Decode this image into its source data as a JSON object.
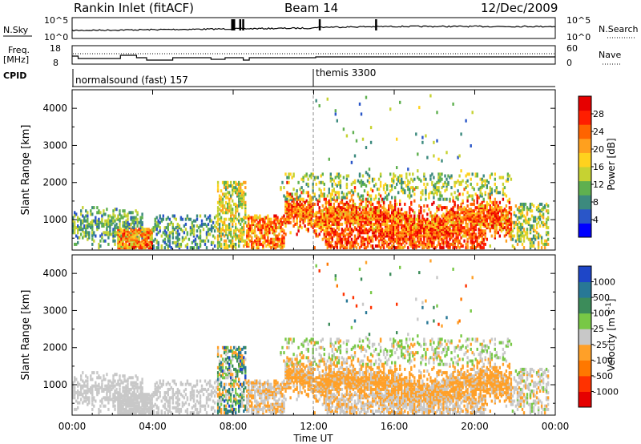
{
  "header": {
    "title": "Rankin Inlet (fitACF)",
    "beam": "Beam 14",
    "date": "12/Dec/2009"
  },
  "sky_panel": {
    "left_label": "N.Sky",
    "left_ticks": [
      "10^5",
      "10^0"
    ],
    "right_label": "N.Search",
    "right_ticks": [
      "10^5",
      "10^0"
    ]
  },
  "freq_panel": {
    "left_label_line1": "Freq.",
    "left_label_line2": "[MHz]",
    "left_ticks": [
      "18",
      "8"
    ],
    "right_label": "Nave",
    "right_ticks": [
      "60",
      "0"
    ]
  },
  "cpid": {
    "label": "CPID",
    "modes": [
      {
        "name": "normalsound (fast) 157",
        "start_hour": 0
      },
      {
        "name": "themis 3300",
        "start_hour": 12
      }
    ]
  },
  "x_axis": {
    "label": "Time UT",
    "tick_labels": [
      "00:00",
      "04:00",
      "08:00",
      "12:00",
      "16:00",
      "20:00",
      "00:00"
    ],
    "range_hours": [
      0,
      24
    ]
  },
  "chart_data": [
    {
      "type": "heatmap",
      "parameter": "power",
      "ylabel": "Slant Range [km]",
      "yticks": [
        1000,
        2000,
        3000,
        4000
      ],
      "ylim": [
        180,
        4500
      ],
      "xlim_hours": [
        0,
        24
      ],
      "colorbar": {
        "label": "Power [dB]",
        "tick_labels": [
          "4",
          "8",
          "12",
          "16",
          "20",
          "24",
          "28"
        ],
        "range": [
          0,
          30
        ],
        "colors": [
          "#0000ff",
          "#2a56c8",
          "#3c8a7e",
          "#5fb04f",
          "#c6d232",
          "#ffd21e",
          "#ffa01e",
          "#ff6400",
          "#ff1e00",
          "#e60000"
        ]
      }
    },
    {
      "type": "heatmap",
      "parameter": "velocity",
      "ylabel": "Slant Range [km]",
      "yticks": [
        1000,
        2000,
        3000,
        4000
      ],
      "ylim": [
        180,
        4500
      ],
      "xlim_hours": [
        0,
        24
      ],
      "colorbar": {
        "label": "Velocity [m s^-1]",
        "tick_labels": [
          "1000",
          "500",
          "100",
          "25",
          "-25",
          "-100",
          "-500",
          "-1000"
        ],
        "range": [
          -1200,
          1200
        ],
        "colors": [
          "#e60000",
          "#ff3200",
          "#ff7800",
          "#ffa028",
          "#c8c8c8",
          "#78c846",
          "#3c8c5a",
          "#287896",
          "#1e46c8"
        ]
      }
    }
  ]
}
